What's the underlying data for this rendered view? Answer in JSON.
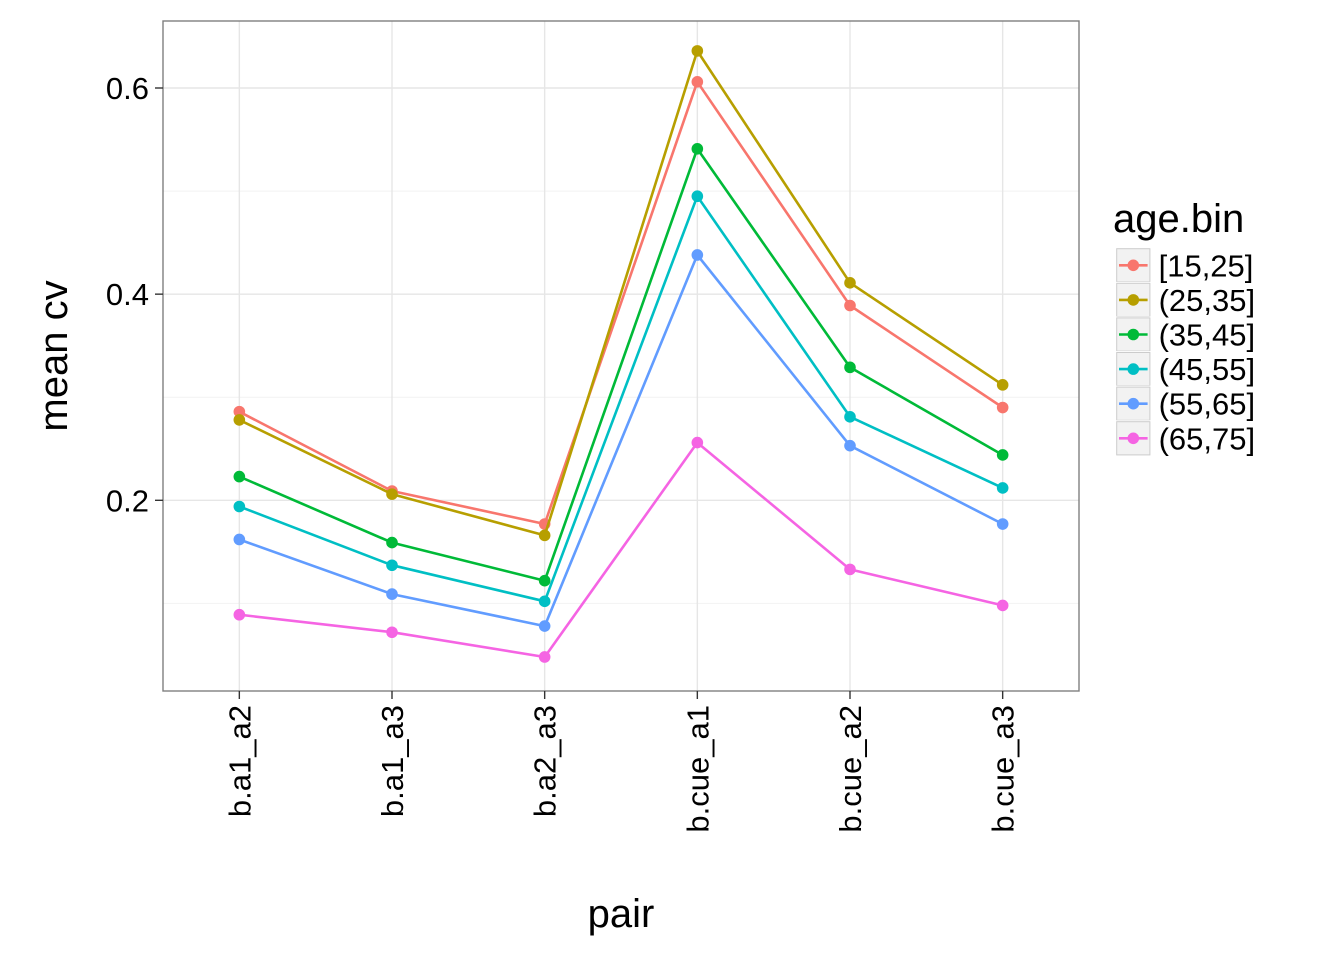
{
  "chart_data": {
    "type": "line",
    "xlabel": "pair",
    "ylabel": "mean cv",
    "categories": [
      "b.a1_a2",
      "b.a1_a3",
      "b.a2_a3",
      "b.cue_a1",
      "b.cue_a2",
      "b.cue_a3"
    ],
    "ylim": [
      0.015,
      0.665
    ],
    "yticks": [
      0.2,
      0.4,
      0.6
    ],
    "ytick_labels": [
      "0.2",
      "0.4",
      "0.6"
    ],
    "grid": true,
    "legend": {
      "title": "age.bin",
      "placement": "right"
    },
    "series": [
      {
        "name": "[15,25]",
        "color": "#F8766D",
        "values": [
          0.286,
          0.209,
          0.177,
          0.606,
          0.389,
          0.29
        ]
      },
      {
        "name": "(25,35]",
        "color": "#B79F00",
        "values": [
          0.278,
          0.206,
          0.166,
          0.636,
          0.411,
          0.312
        ]
      },
      {
        "name": "(35,45]",
        "color": "#00BA38",
        "values": [
          0.223,
          0.159,
          0.122,
          0.541,
          0.329,
          0.244
        ]
      },
      {
        "name": "(45,55]",
        "color": "#00BFC4",
        "values": [
          0.194,
          0.137,
          0.102,
          0.495,
          0.281,
          0.212
        ]
      },
      {
        "name": "(55,65]",
        "color": "#619CFF",
        "values": [
          0.162,
          0.109,
          0.078,
          0.438,
          0.253,
          0.177
        ]
      },
      {
        "name": "(65,75]",
        "color": "#F564E3",
        "values": [
          0.089,
          0.072,
          0.048,
          0.256,
          0.133,
          0.098
        ]
      }
    ]
  }
}
